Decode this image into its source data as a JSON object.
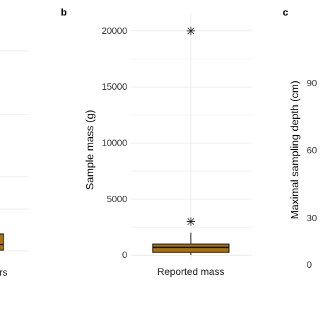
{
  "panels": {
    "a": {
      "category_fragment": "rs"
    },
    "b": {
      "letter": "b"
    },
    "c": {
      "letter": "c",
      "ylabel": "Maximal sampling depth (cm)",
      "ticks": [
        "0",
        "30",
        "60",
        "90"
      ]
    }
  },
  "colors": {
    "box_fill": "#a8700f",
    "box_stroke": "#1a1a1a",
    "grid": "#e8e8e8"
  },
  "chart_data": [
    {
      "panel": "b",
      "type": "box",
      "categories": [
        "Reported mass"
      ],
      "ylabel": "Sample mass (g)",
      "xlabel": "",
      "ylim": [
        -500,
        21500
      ],
      "yticks": [
        0,
        5000,
        10000,
        15000,
        20000
      ],
      "ytick_labels": [
        "0",
        "5000",
        "10000",
        "15000",
        "20000"
      ],
      "grid": true,
      "box": {
        "whisker_low": 0,
        "q1": 250,
        "median": 700,
        "q3": 1000,
        "whisker_high": 2000
      },
      "outliers": [
        3000,
        20000
      ]
    }
  ]
}
